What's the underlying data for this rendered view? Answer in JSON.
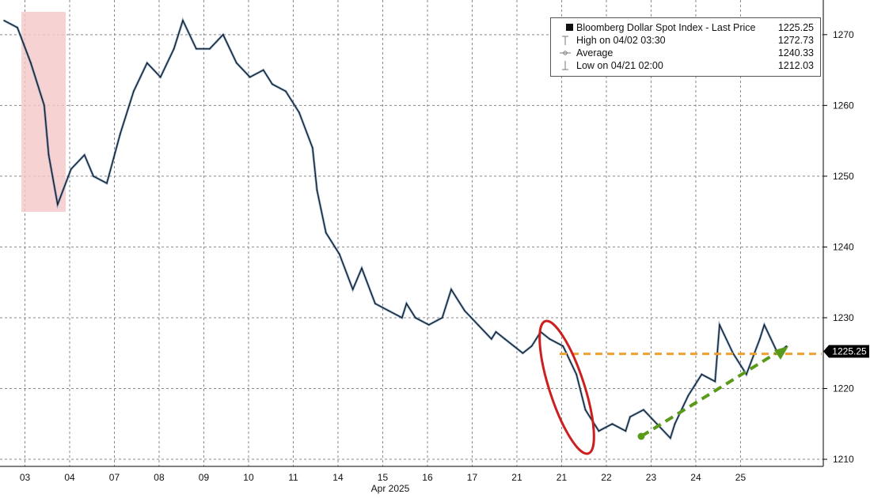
{
  "chart_data": {
    "type": "line",
    "title": "",
    "xlabel": "Apr 2025",
    "ylabel": "",
    "ylim": [
      1209,
      1274
    ],
    "y_ticks": [
      1210,
      1220,
      1230,
      1240,
      1250,
      1260,
      1270
    ],
    "x_tick_labels": [
      "03",
      "04",
      "07",
      "08",
      "09",
      "10",
      "11",
      "14",
      "15",
      "16",
      "17",
      "21",
      "21",
      "22",
      "23",
      "24",
      "25"
    ],
    "grid": true,
    "legend_position": "top-right",
    "series": [
      {
        "name": "Bloomberg Dollar Spot Index - Last Price",
        "color": "#1a1a1a",
        "last_value": "1225.25",
        "x": [
          0,
          0.3,
          0.6,
          0.9,
          1.0,
          1.2,
          1.5,
          1.8,
          2.0,
          2.3,
          2.6,
          2.9,
          3.2,
          3.5,
          3.8,
          4.0,
          4.3,
          4.6,
          4.9,
          5.2,
          5.5,
          5.8,
          6.0,
          6.3,
          6.6,
          6.9,
          7.0,
          7.2,
          7.5,
          7.8,
          8.0,
          8.3,
          8.6,
          8.9,
          9.0,
          9.2,
          9.5,
          9.8,
          10.0,
          10.3,
          10.6,
          10.9,
          11.0,
          11.2,
          11.4,
          11.6,
          11.8,
          11.9,
          12.0,
          12.2,
          12.5,
          12.8,
          13.0,
          13.3,
          13.6,
          13.9,
          14.0,
          14.3,
          14.6,
          14.9,
          15.0,
          15.3,
          15.6,
          15.9,
          16.0,
          16.3,
          16.6,
          16.9,
          17.0,
          17.3,
          17.5
        ],
        "values": [
          1272,
          1271,
          1266,
          1260,
          1253,
          1246,
          1251,
          1253,
          1250,
          1249,
          1256,
          1262,
          1266,
          1264,
          1268,
          1272,
          1268,
          1268,
          1270,
          1266,
          1264,
          1265,
          1263,
          1262,
          1259,
          1254,
          1248,
          1242,
          1239,
          1234,
          1237,
          1232,
          1231,
          1230,
          1232,
          1230,
          1229,
          1230,
          1234,
          1231,
          1229,
          1227,
          1228,
          1227,
          1226,
          1225,
          1226,
          1227,
          1228,
          1227,
          1226,
          1222,
          1217,
          1214,
          1215,
          1214,
          1216,
          1217,
          1215,
          1213,
          1215,
          1219,
          1222,
          1221,
          1229,
          1225,
          1222,
          1227,
          1229,
          1225,
          1226
        ]
      }
    ],
    "legend_rows": [
      {
        "label": "Bloomberg Dollar Spot Index - Last Price",
        "value": "1225.25",
        "icon": "filled-square"
      },
      {
        "label": "High on 04/02 03:30",
        "value": "1272.73",
        "icon": "high-marker-icon"
      },
      {
        "label": "Average",
        "value": "1240.33",
        "icon": "average-marker-icon"
      },
      {
        "label": "Low on 04/21 02:00",
        "value": "1212.03",
        "icon": "low-marker-icon"
      }
    ],
    "annotations": {
      "last_price_label": "1225.25",
      "shaded_region_color": "#f4c7c7",
      "reference_line_color": "#f0a030",
      "reference_line_value": 1224.9,
      "ellipse_color": "#cc1f1f",
      "trend_arrow_color": "#5a9a1a"
    }
  }
}
